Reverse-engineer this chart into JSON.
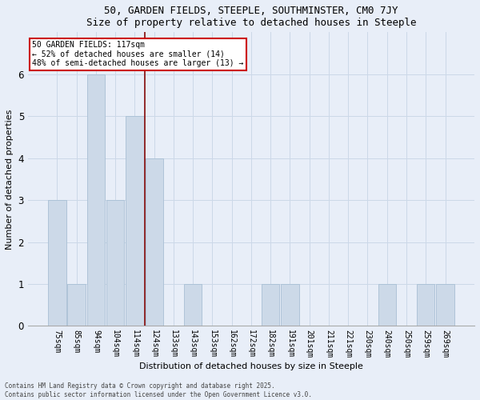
{
  "title1": "50, GARDEN FIELDS, STEEPLE, SOUTHMINSTER, CM0 7JY",
  "title2": "Size of property relative to detached houses in Steeple",
  "xlabel": "Distribution of detached houses by size in Steeple",
  "ylabel": "Number of detached properties",
  "categories": [
    "75sqm",
    "85sqm",
    "94sqm",
    "104sqm",
    "114sqm",
    "124sqm",
    "133sqm",
    "143sqm",
    "153sqm",
    "162sqm",
    "172sqm",
    "182sqm",
    "191sqm",
    "201sqm",
    "211sqm",
    "221sqm",
    "230sqm",
    "240sqm",
    "250sqm",
    "259sqm",
    "269sqm"
  ],
  "values": [
    3,
    1,
    6,
    3,
    5,
    4,
    0,
    1,
    0,
    0,
    0,
    1,
    1,
    0,
    0,
    0,
    0,
    1,
    0,
    1,
    1
  ],
  "bar_color": "#ccd9e8",
  "bar_edge_color": "#a8bfd4",
  "reference_line_index": 4.5,
  "annotation_line1": "50 GARDEN FIELDS: 117sqm",
  "annotation_line2": "← 52% of detached houses are smaller (14)",
  "annotation_line3": "48% of semi-detached houses are larger (13) →",
  "annotation_box_facecolor": "#ffffff",
  "annotation_box_edgecolor": "#cc0000",
  "vline_color": "#8b1a1a",
  "grid_color": "#ccd8e8",
  "background_color": "#e8eef8",
  "ylim_max": 7,
  "yticks": [
    0,
    1,
    2,
    3,
    4,
    5,
    6
  ],
  "footer_line1": "Contains HM Land Registry data © Crown copyright and database right 2025.",
  "footer_line2": "Contains public sector information licensed under the Open Government Licence v3.0."
}
